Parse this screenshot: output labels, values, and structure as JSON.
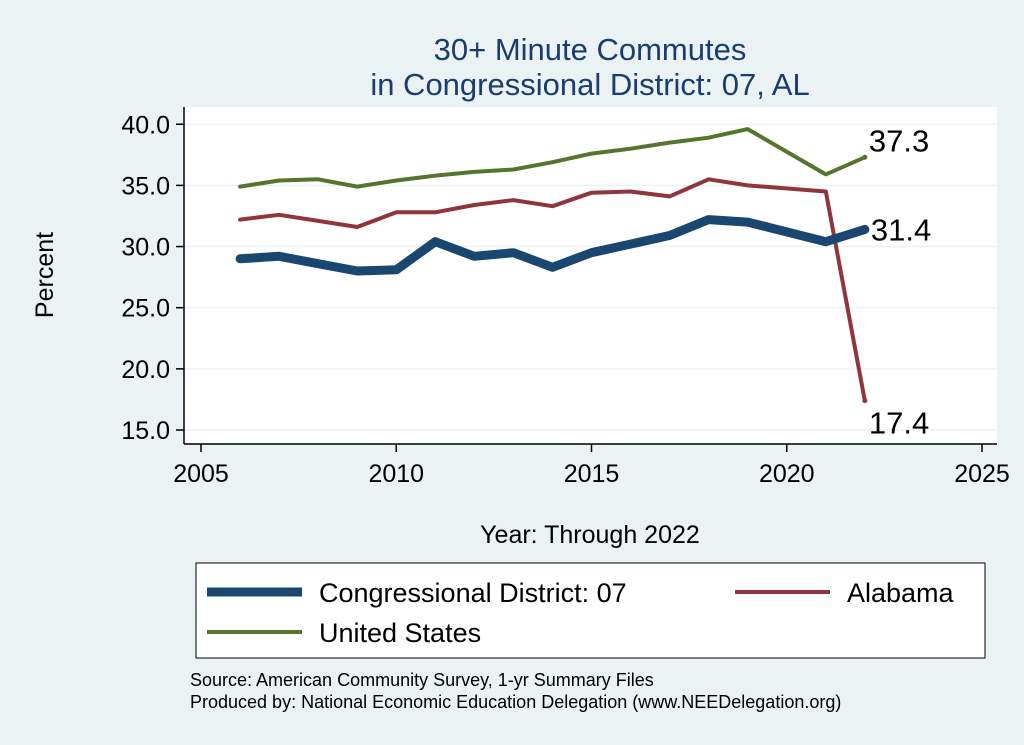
{
  "chart_data": {
    "type": "line",
    "title": "30+ Minute Commutes",
    "subtitle": "in Congressional District:  07, AL",
    "xlabel": "Year: Through 2022",
    "ylabel": "Percent",
    "xlim": [
      2005,
      2025
    ],
    "ylim": [
      15,
      40
    ],
    "xticks": [
      "2005",
      "2010",
      "2015",
      "2020",
      "2025"
    ],
    "yticks": [
      "15.0",
      "20.0",
      "25.0",
      "30.0",
      "35.0",
      "40.0"
    ],
    "x": [
      2006,
      2007,
      2008,
      2009,
      2010,
      2011,
      2012,
      2013,
      2014,
      2015,
      2016,
      2017,
      2018,
      2019,
      2021,
      2022
    ],
    "series": [
      {
        "name": "Congressional District:  07",
        "color": "#1a476f",
        "values": [
          29.0,
          29.2,
          28.6,
          28.0,
          28.1,
          30.4,
          29.2,
          29.5,
          28.3,
          29.5,
          30.2,
          30.9,
          32.2,
          32.0,
          30.4,
          31.4
        ],
        "end_label": "31.4"
      },
      {
        "name": "Alabama",
        "color": "#90353b",
        "values": [
          32.2,
          32.6,
          32.1,
          31.6,
          32.8,
          32.8,
          33.4,
          33.8,
          33.3,
          34.4,
          34.5,
          34.1,
          35.5,
          35.0,
          34.5,
          17.4
        ],
        "end_label": "17.4"
      },
      {
        "name": "United States",
        "color": "#55752f",
        "values": [
          34.9,
          35.4,
          35.5,
          34.9,
          35.4,
          35.8,
          36.1,
          36.3,
          36.9,
          37.6,
          38.0,
          38.5,
          38.9,
          39.6,
          35.9,
          37.3
        ],
        "end_label": "37.3"
      }
    ],
    "grid": true,
    "legend_position": "bottom",
    "notes": [
      "Source: American Community Survey, 1-yr Summary Files",
      "Produced by: National Economic Education Delegation (www.NEEDelegation.org)"
    ]
  }
}
